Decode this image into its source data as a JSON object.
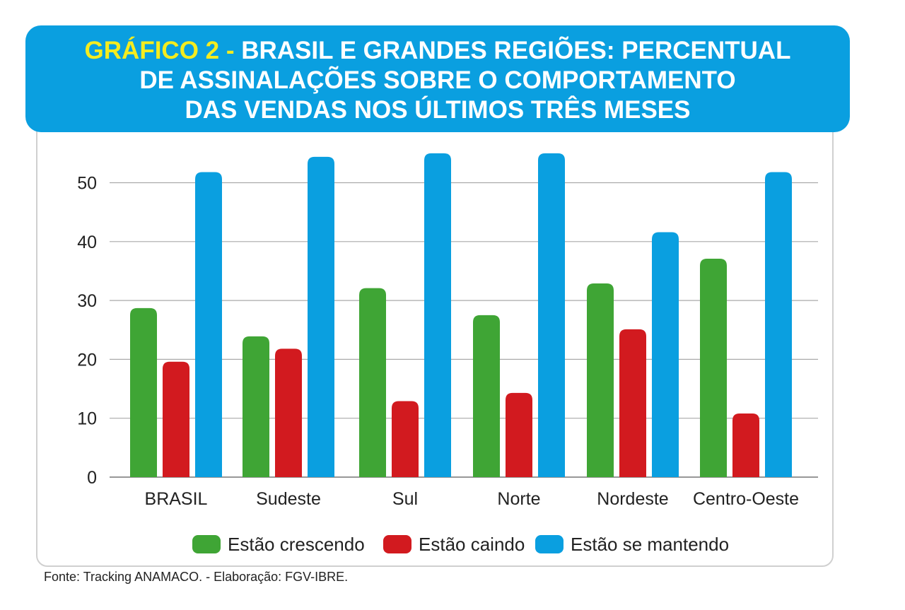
{
  "header": {
    "label": "GRÁFICO 2 -",
    "line1": "BRASIL E GRANDES REGIÕES: PERCENTUAL",
    "line2": "DE ASSINALAÇÕES SOBRE O COMPORTAMENTO",
    "line3": "DAS VENDAS NOS ÚLTIMOS TRÊS MESES"
  },
  "source": "Fonte: Tracking ANAMACO. - Elaboração: FGV-IBRE.",
  "colors": {
    "banner": "#0a9fe0",
    "label": "#f4ec1f",
    "green": "#3fa535",
    "red": "#d21a1f",
    "blue": "#0a9fe0"
  },
  "chart_data": {
    "type": "bar",
    "title": "",
    "xlabel": "",
    "ylabel": "",
    "ylim": [
      0,
      55
    ],
    "yticks": [
      "0",
      "10",
      "20",
      "30",
      "40",
      "50"
    ],
    "grid": true,
    "legend_position": "bottom",
    "categories": [
      "BRASIL",
      "Sudeste",
      "Sul",
      "Norte",
      "Nordeste",
      "Centro-Oeste"
    ],
    "series": [
      {
        "name": "Estão crescendo",
        "color": "#3fa535",
        "values": [
          28.7,
          23.9,
          32.1,
          27.5,
          32.9,
          37.1
        ]
      },
      {
        "name": "Estão caindo",
        "color": "#d21a1f",
        "values": [
          19.6,
          21.8,
          12.9,
          14.3,
          25.1,
          10.8
        ]
      },
      {
        "name": "Estão se mantendo",
        "color": "#0a9fe0",
        "values": [
          51.8,
          54.4,
          55.0,
          55.0,
          41.6,
          51.8
        ]
      }
    ]
  }
}
